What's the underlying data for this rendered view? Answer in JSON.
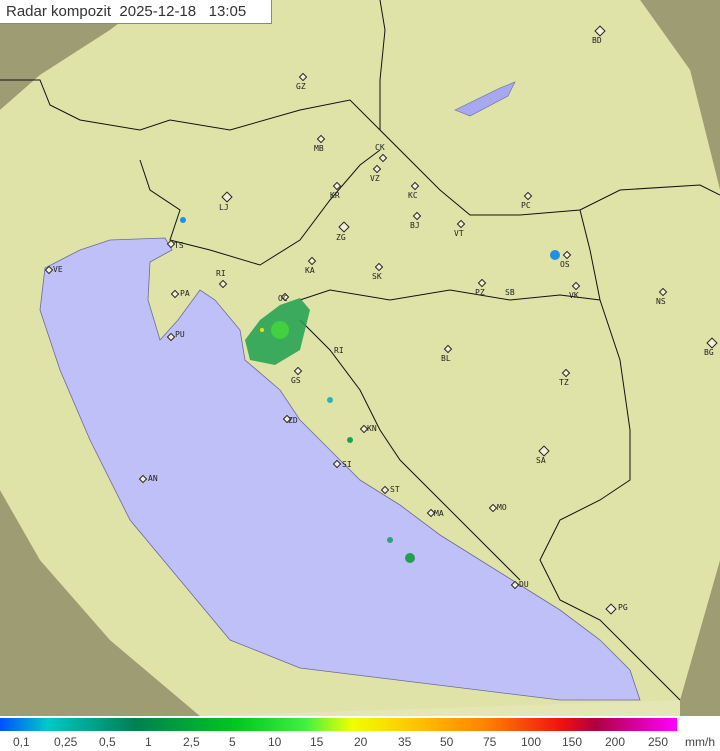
{
  "title": {
    "product": "Radar kompozit",
    "date": "2025-12-18",
    "time": "13:05"
  },
  "cities": [
    "BD",
    "GZ",
    "MB",
    "CK",
    "VZ",
    "KR",
    "KC",
    "LJ",
    "PC",
    "BJ",
    "ZG",
    "VT",
    "TS",
    "OS",
    "VE",
    "KA",
    "SK",
    "RI",
    "PA",
    "PZ",
    "SB",
    "VK",
    "NS",
    "OC",
    "PU",
    "BG",
    "RI",
    "BL",
    "GS",
    "TZ",
    "ZD",
    "KN",
    "SA",
    "AN",
    "SI",
    "ST",
    "MO",
    "MA",
    "DU",
    "PG"
  ],
  "legend": {
    "unit": "mm/h",
    "ticks": [
      "0,1",
      "0,25",
      "0,5",
      "1",
      "2,5",
      "5",
      "10",
      "15",
      "20",
      "35",
      "50",
      "75",
      "100",
      "150",
      "200",
      "250"
    ],
    "colors": {
      "low": "#0050ff",
      "mid": "#00c820",
      "high": "#ff00ff"
    }
  },
  "colors": {
    "sea": "#c0c0f8",
    "land": "#e6e6b4",
    "outside_coverage": "#8a8a60"
  }
}
